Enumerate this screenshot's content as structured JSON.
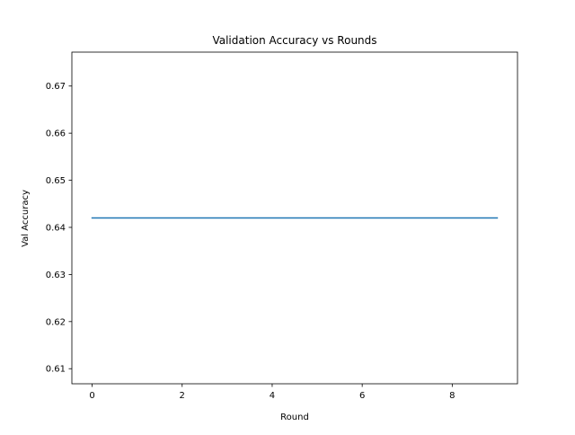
{
  "chart_data": {
    "type": "line",
    "title": "Validation Accuracy vs Rounds",
    "xlabel": "Round",
    "ylabel": "Val Accuracy",
    "xlim": [
      -0.45,
      9.45
    ],
    "ylim": [
      0.6068,
      0.6772
    ],
    "x_ticks": [
      0,
      2,
      4,
      6,
      8
    ],
    "x_tick_labels": [
      "0",
      "2",
      "4",
      "6",
      "8"
    ],
    "y_ticks": [
      0.61,
      0.62,
      0.63,
      0.64,
      0.65,
      0.66,
      0.67
    ],
    "y_tick_labels": [
      "0.61",
      "0.62",
      "0.63",
      "0.64",
      "0.65",
      "0.66",
      "0.67"
    ],
    "grid": false,
    "series": [
      {
        "color": "#1f77b4",
        "x": [
          0,
          1,
          2,
          3,
          4,
          5,
          6,
          7,
          8,
          9
        ],
        "values": [
          0.642,
          0.642,
          0.642,
          0.642,
          0.642,
          0.642,
          0.642,
          0.642,
          0.642,
          0.642
        ]
      }
    ]
  }
}
